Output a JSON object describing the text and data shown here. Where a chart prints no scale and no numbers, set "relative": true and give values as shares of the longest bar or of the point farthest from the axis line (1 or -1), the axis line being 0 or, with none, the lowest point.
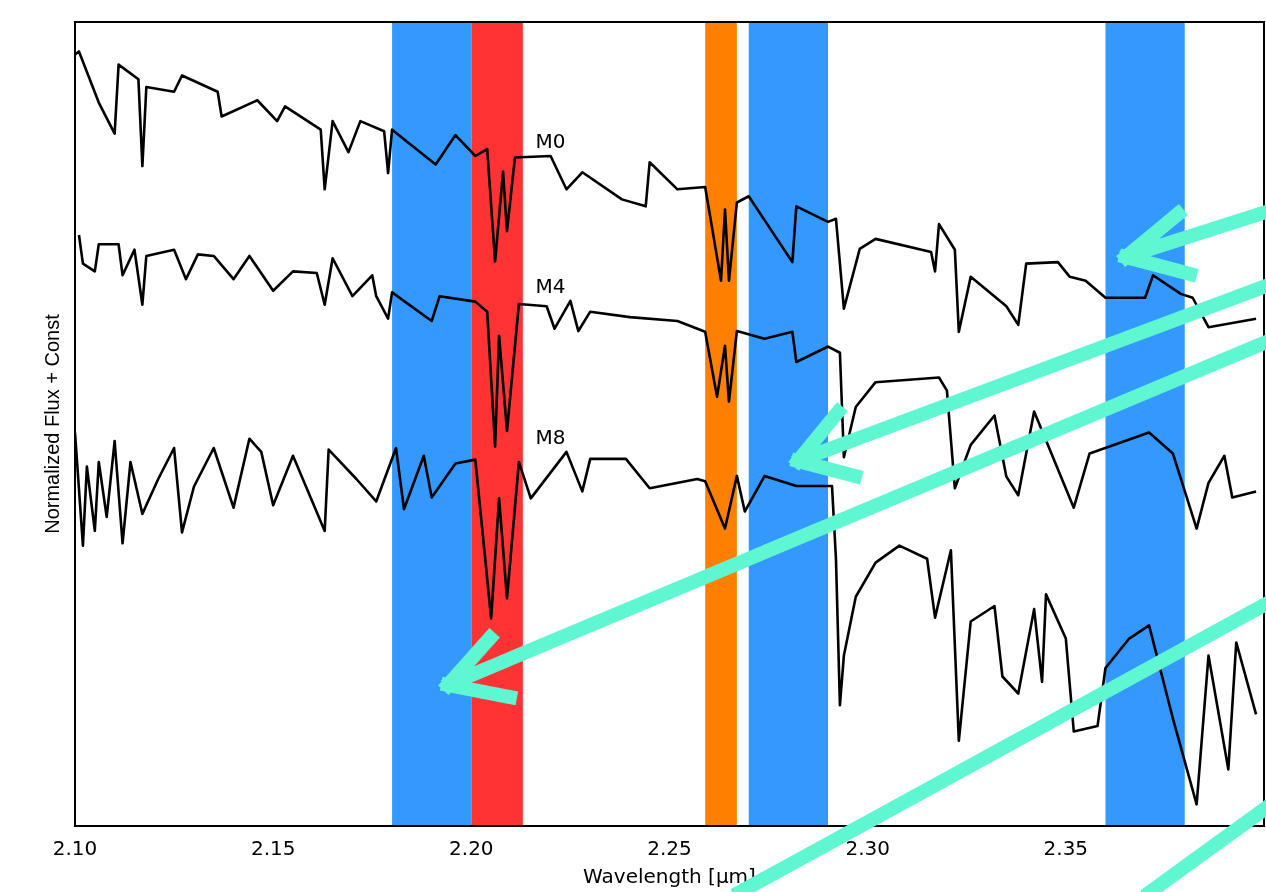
{
  "chart_data": {
    "type": "line",
    "xlabel": "Wavelength [μm]",
    "ylabel": "Normalized Flux + Const",
    "relative": true,
    "legend": false,
    "grid": false,
    "xlim": [
      2.1,
      2.4
    ],
    "xticks": [
      {
        "value": 2.1,
        "label": "2.10"
      },
      {
        "value": 2.15,
        "label": "2.15"
      },
      {
        "value": 2.2,
        "label": "2.20"
      },
      {
        "value": 2.25,
        "label": "2.25"
      },
      {
        "value": 2.3,
        "label": "2.30"
      },
      {
        "value": 2.35,
        "label": "2.35"
      }
    ],
    "bands": [
      {
        "axis": "x",
        "from": 2.18,
        "to": 2.2,
        "color": "#3399ff"
      },
      {
        "axis": "x",
        "from": 2.2,
        "to": 2.213,
        "color": "#ff3333"
      },
      {
        "axis": "x",
        "from": 2.259,
        "to": 2.267,
        "color": "#ff8000"
      },
      {
        "axis": "x",
        "from": 2.27,
        "to": 2.29,
        "color": "#3399ff"
      },
      {
        "axis": "x",
        "from": 2.36,
        "to": 2.38,
        "color": "#3399ff"
      }
    ],
    "series": [
      {
        "name": "M0",
        "color": "#000000",
        "x": [
          2.1,
          2.101,
          2.106,
          2.11,
          2.111,
          2.116,
          2.117,
          2.118,
          2.125,
          2.127,
          2.136,
          2.137,
          2.146,
          2.151,
          2.153,
          2.162,
          2.163,
          2.165,
          2.169,
          2.172,
          2.178,
          2.179,
          2.18,
          2.191,
          2.196,
          2.201,
          2.204,
          2.206,
          2.208,
          2.209,
          2.211,
          2.22,
          2.224,
          2.228,
          2.238,
          2.244,
          2.245,
          2.252,
          2.259,
          2.263,
          2.264,
          2.265,
          2.267,
          2.27,
          2.281,
          2.282,
          2.29,
          2.292,
          2.294,
          2.298,
          2.302,
          2.316,
          2.317,
          2.318,
          2.322,
          2.323,
          2.326,
          2.335,
          2.338,
          2.34,
          2.348,
          2.351,
          2.352,
          2.355,
          2.36,
          2.37,
          2.372,
          2.379,
          2.382,
          2.383,
          2.386,
          2.391,
          2.392,
          2.398
        ],
        "values": [
          0.996,
          1.0,
          0.934,
          0.894,
          0.983,
          0.964,
          0.852,
          0.954,
          0.948,
          0.969,
          0.948,
          0.916,
          0.937,
          0.91,
          0.929,
          0.899,
          0.822,
          0.91,
          0.87,
          0.91,
          0.897,
          0.843,
          0.899,
          0.854,
          0.892,
          0.865,
          0.874,
          0.729,
          0.845,
          0.768,
          0.863,
          0.865,
          0.822,
          0.844,
          0.809,
          0.8,
          0.857,
          0.822,
          0.825,
          0.704,
          0.796,
          0.704,
          0.805,
          0.813,
          0.728,
          0.8,
          0.78,
          0.784,
          0.668,
          0.745,
          0.758,
          0.741,
          0.716,
          0.777,
          0.744,
          0.638,
          0.709,
          0.671,
          0.647,
          0.726,
          0.728,
          0.709,
          null,
          0.704,
          0.682,
          0.682,
          0.711,
          0.687,
          0.682,
          null,
          0.644,
          null,
          null,
          0.655
        ]
      },
      {
        "name": "M4",
        "color": "#000000",
        "x": [
          2.101,
          2.102,
          2.105,
          2.106,
          2.111,
          2.112,
          2.115,
          2.117,
          2.118,
          2.125,
          2.128,
          2.131,
          2.135,
          2.14,
          2.144,
          2.15,
          2.155,
          2.161,
          2.163,
          2.165,
          2.17,
          2.175,
          2.176,
          2.179,
          2.18,
          2.19,
          2.192,
          2.201,
          2.204,
          2.206,
          2.207,
          2.209,
          2.212,
          2.219,
          2.221,
          2.225,
          2.227,
          2.23,
          2.24,
          2.252,
          2.259,
          2.262,
          2.264,
          2.265,
          2.267,
          2.274,
          2.281,
          2.282,
          2.29,
          2.293,
          2.294,
          2.297,
          2.302,
          2.318,
          2.32,
          2.322,
          2.326,
          2.332,
          2.335,
          2.338,
          2.342,
          2.35,
          2.352,
          2.356,
          2.371,
          2.377,
          2.383,
          2.386,
          2.39,
          2.392,
          2.398
        ],
        "values": [
          0.763,
          0.726,
          0.716,
          0.751,
          0.751,
          0.711,
          0.744,
          0.673,
          0.736,
          0.744,
          0.706,
          0.738,
          0.736,
          0.706,
          0.736,
          0.691,
          0.716,
          0.714,
          0.673,
          0.733,
          0.684,
          0.711,
          0.684,
          0.655,
          0.689,
          0.652,
          0.684,
          0.677,
          0.664,
          0.49,
          0.633,
          0.51,
          0.674,
          0.671,
          0.642,
          0.678,
          0.639,
          0.664,
          0.657,
          0.652,
          0.638,
          0.554,
          0.62,
          0.548,
          0.639,
          0.629,
          0.638,
          0.599,
          0.619,
          0.611,
          0.476,
          0.541,
          0.573,
          0.579,
          0.562,
          0.436,
          0.492,
          0.53,
          0.451,
          0.427,
          0.535,
          null,
          0.411,
          0.481,
          0.508,
          0.481,
          0.384,
          0.443,
          0.478,
          0.424,
          0.432
        ]
      },
      {
        "name": "M8",
        "color": "#000000",
        "x": [
          2.1,
          2.102,
          2.103,
          2.105,
          2.106,
          2.108,
          2.11,
          2.112,
          2.114,
          2.117,
          2.121,
          2.125,
          2.127,
          2.13,
          2.135,
          2.14,
          2.144,
          2.147,
          2.15,
          2.155,
          2.163,
          2.164,
          2.171,
          2.176,
          2.181,
          2.183,
          2.188,
          2.19,
          2.196,
          2.201,
          2.205,
          2.207,
          2.209,
          2.212,
          2.215,
          2.224,
          2.228,
          2.23,
          2.239,
          2.245,
          2.257,
          2.259,
          2.264,
          2.267,
          2.269,
          2.274,
          2.28,
          2.282,
          2.291,
          2.292,
          2.293,
          2.294,
          2.297,
          2.302,
          2.308,
          2.315,
          2.317,
          2.321,
          2.323,
          2.326,
          2.332,
          2.334,
          2.338,
          2.342,
          2.344,
          2.345,
          2.35,
          2.352,
          2.358,
          2.36,
          2.366,
          2.371,
          2.377,
          2.379,
          2.383,
          2.386,
          2.391,
          2.393,
          2.398
        ],
        "values": [
          0.508,
          0.362,
          0.464,
          0.381,
          0.47,
          0.399,
          0.497,
          0.365,
          0.47,
          0.403,
          0.448,
          0.488,
          0.379,
          0.438,
          0.488,
          0.411,
          0.5,
          0.483,
          0.414,
          0.478,
          0.381,
          0.486,
          0.448,
          0.419,
          0.488,
          0.409,
          0.478,
          0.424,
          0.468,
          0.473,
          0.268,
          0.423,
          0.294,
          0.47,
          0.423,
          0.483,
          0.432,
          0.474,
          0.474,
          0.436,
          0.448,
          0.445,
          0.384,
          0.452,
          0.406,
          0.452,
          null,
          0.439,
          0.439,
          0.345,
          0.156,
          0.22,
          0.296,
          0.34,
          0.362,
          0.345,
          0.269,
          0.356,
          0.11,
          0.264,
          0.284,
          0.193,
          0.171,
          0.28,
          0.186,
          0.299,
          0.242,
          0.122,
          0.129,
          0.204,
          0.242,
          0.259,
          0.139,
          null,
          0.028,
          0.22,
          0.073,
          0.237,
          0.144
        ]
      }
    ]
  }
}
